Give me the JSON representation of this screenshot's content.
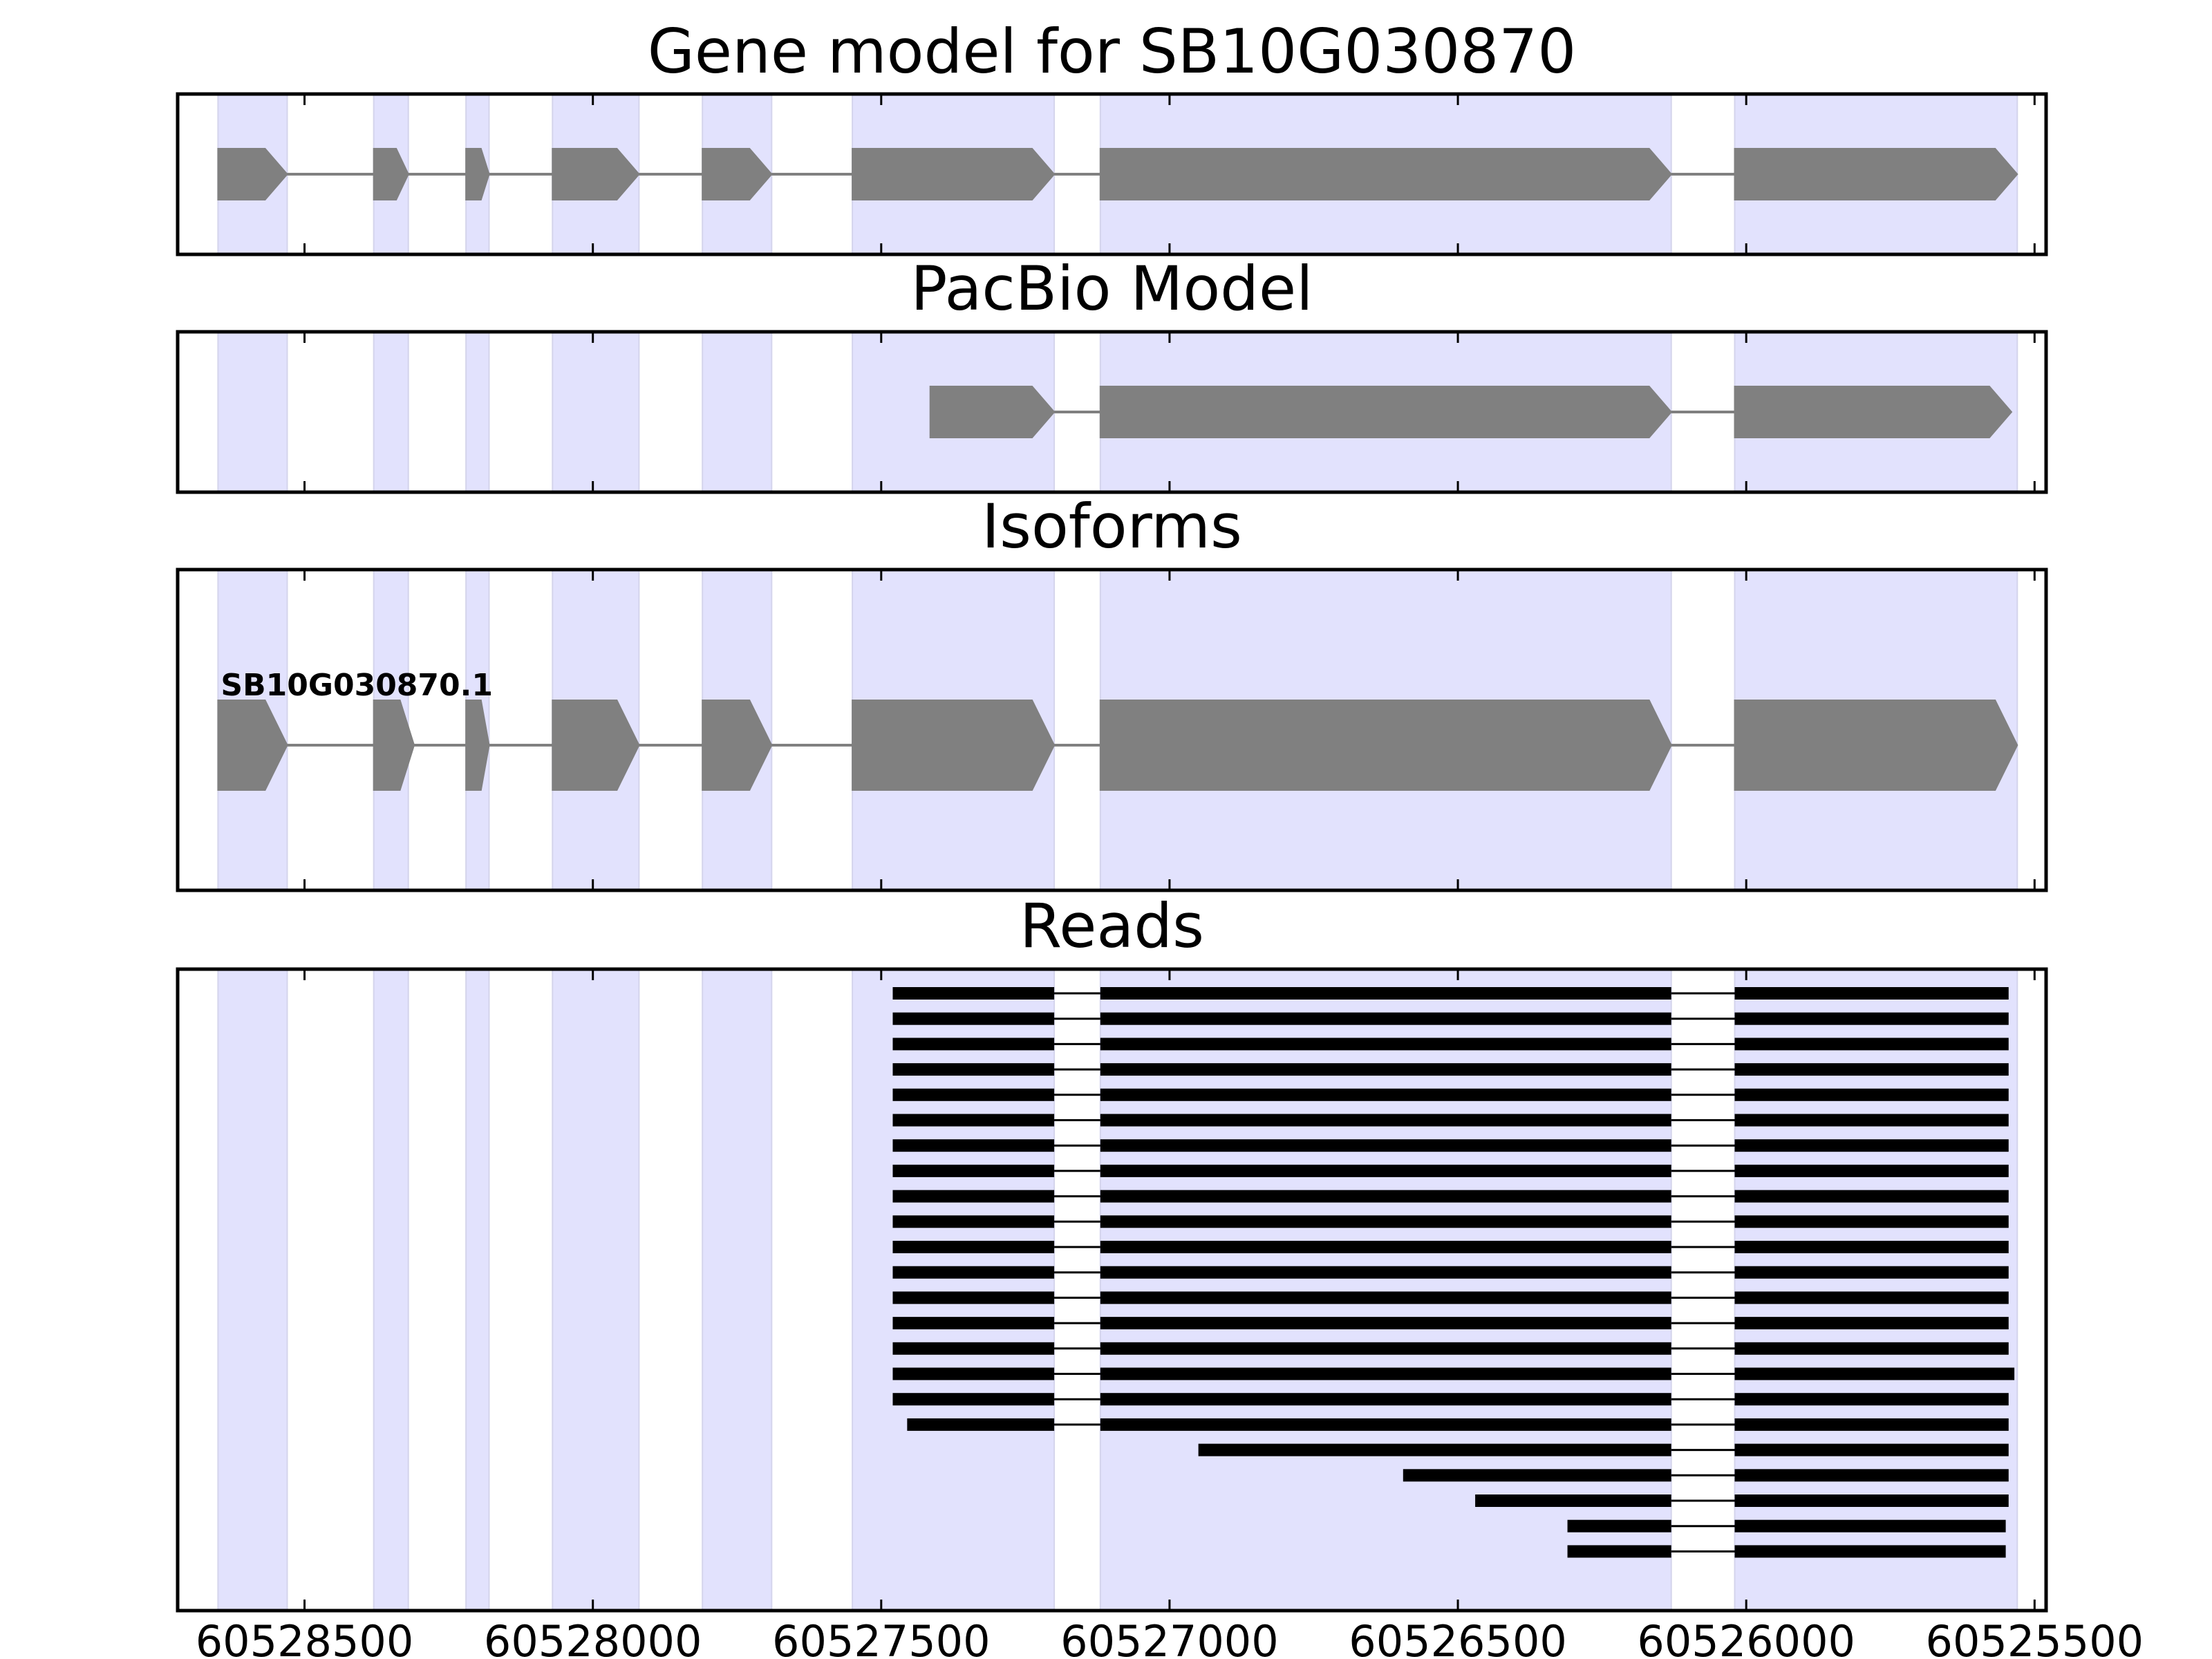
{
  "chart_data": [
    {
      "type": "gene_track",
      "title": "Gene model for SB10G030870",
      "track": "reference",
      "exons": [
        [
          60528650,
          60528530
        ],
        [
          60528380,
          60528320
        ],
        [
          60528220,
          60528180
        ],
        [
          60528070,
          60527920
        ],
        [
          60527810,
          60527690
        ],
        [
          60527550,
          60527200
        ],
        [
          60527120,
          60526130
        ],
        [
          60526020,
          60525530
        ]
      ]
    },
    {
      "type": "gene_track",
      "title": "PacBio Model",
      "track": "pacbio",
      "exons": [
        [
          60527415,
          60527200
        ],
        [
          60527120,
          60526130
        ],
        [
          60526020,
          60525540
        ]
      ]
    },
    {
      "type": "gene_track",
      "title": "Isoforms",
      "track": "isoforms",
      "isoforms": [
        {
          "label": "SB10G030870.1",
          "exons": [
            [
              60528650,
              60528530
            ],
            [
              60528380,
              60528310
            ],
            [
              60528220,
              60528180
            ],
            [
              60528070,
              60527920
            ],
            [
              60527810,
              60527690
            ],
            [
              60527550,
              60527200
            ],
            [
              60527120,
              60526130
            ],
            [
              60526020,
              60525530
            ]
          ]
        }
      ]
    },
    {
      "type": "reads",
      "title": "Reads",
      "xlabel_ticks": [
        "60528500",
        "60528000",
        "60527500",
        "60527000",
        "60526500",
        "60526000",
        "60525500"
      ],
      "xticks": [
        60528500,
        60528000,
        60527500,
        60527000,
        60526500,
        60526000,
        60525500
      ],
      "reads": [
        [
          [
            60527480,
            60527200
          ],
          [
            60527120,
            60526130
          ],
          [
            60526020,
            60525545
          ]
        ],
        [
          [
            60527480,
            60527200
          ],
          [
            60527120,
            60526130
          ],
          [
            60526020,
            60525545
          ]
        ],
        [
          [
            60527480,
            60527200
          ],
          [
            60527120,
            60526130
          ],
          [
            60526020,
            60525545
          ]
        ],
        [
          [
            60527480,
            60527200
          ],
          [
            60527120,
            60526130
          ],
          [
            60526020,
            60525545
          ]
        ],
        [
          [
            60527480,
            60527200
          ],
          [
            60527120,
            60526130
          ],
          [
            60526020,
            60525545
          ]
        ],
        [
          [
            60527480,
            60527200
          ],
          [
            60527120,
            60526130
          ],
          [
            60526020,
            60525545
          ]
        ],
        [
          [
            60527480,
            60527200
          ],
          [
            60527120,
            60526130
          ],
          [
            60526020,
            60525545
          ]
        ],
        [
          [
            60527480,
            60527200
          ],
          [
            60527120,
            60526130
          ],
          [
            60526020,
            60525545
          ]
        ],
        [
          [
            60527480,
            60527200
          ],
          [
            60527120,
            60526130
          ],
          [
            60526020,
            60525545
          ]
        ],
        [
          [
            60527480,
            60527200
          ],
          [
            60527120,
            60526130
          ],
          [
            60526020,
            60525545
          ]
        ],
        [
          [
            60527480,
            60527200
          ],
          [
            60527120,
            60526130
          ],
          [
            60526020,
            60525545
          ]
        ],
        [
          [
            60527480,
            60527200
          ],
          [
            60527120,
            60526130
          ],
          [
            60526020,
            60525545
          ]
        ],
        [
          [
            60527480,
            60527200
          ],
          [
            60527120,
            60526130
          ],
          [
            60526020,
            60525545
          ]
        ],
        [
          [
            60527480,
            60527200
          ],
          [
            60527120,
            60526130
          ],
          [
            60526020,
            60525545
          ]
        ],
        [
          [
            60527480,
            60527200
          ],
          [
            60527120,
            60526130
          ],
          [
            60526020,
            60525545
          ]
        ],
        [
          [
            60527480,
            60527200
          ],
          [
            60527120,
            60526130
          ],
          [
            60526020,
            60525535
          ]
        ],
        [
          [
            60527480,
            60527200
          ],
          [
            60527120,
            60526130
          ],
          [
            60526020,
            60525545
          ]
        ],
        [
          [
            60527455,
            60527200
          ],
          [
            60527120,
            60526130
          ],
          [
            60526020,
            60525545
          ]
        ],
        [
          [
            60526950,
            60526130
          ],
          [
            60526020,
            60525545
          ]
        ],
        [
          [
            60526595,
            60526130
          ],
          [
            60526020,
            60525545
          ]
        ],
        [
          [
            60526470,
            60526130
          ],
          [
            60526020,
            60525545
          ]
        ],
        [
          [
            60526310,
            60526130
          ],
          [
            60526020,
            60525550
          ]
        ],
        [
          [
            60526310,
            60526130
          ],
          [
            60526020,
            60525550
          ]
        ]
      ]
    }
  ],
  "axis": {
    "xlim": [
      60528720,
      60525480
    ],
    "reversed": true
  },
  "colors": {
    "exon_band": "#e2e2fd",
    "gene_shape": "#808080",
    "read": "#000000",
    "frame": "#000000"
  }
}
